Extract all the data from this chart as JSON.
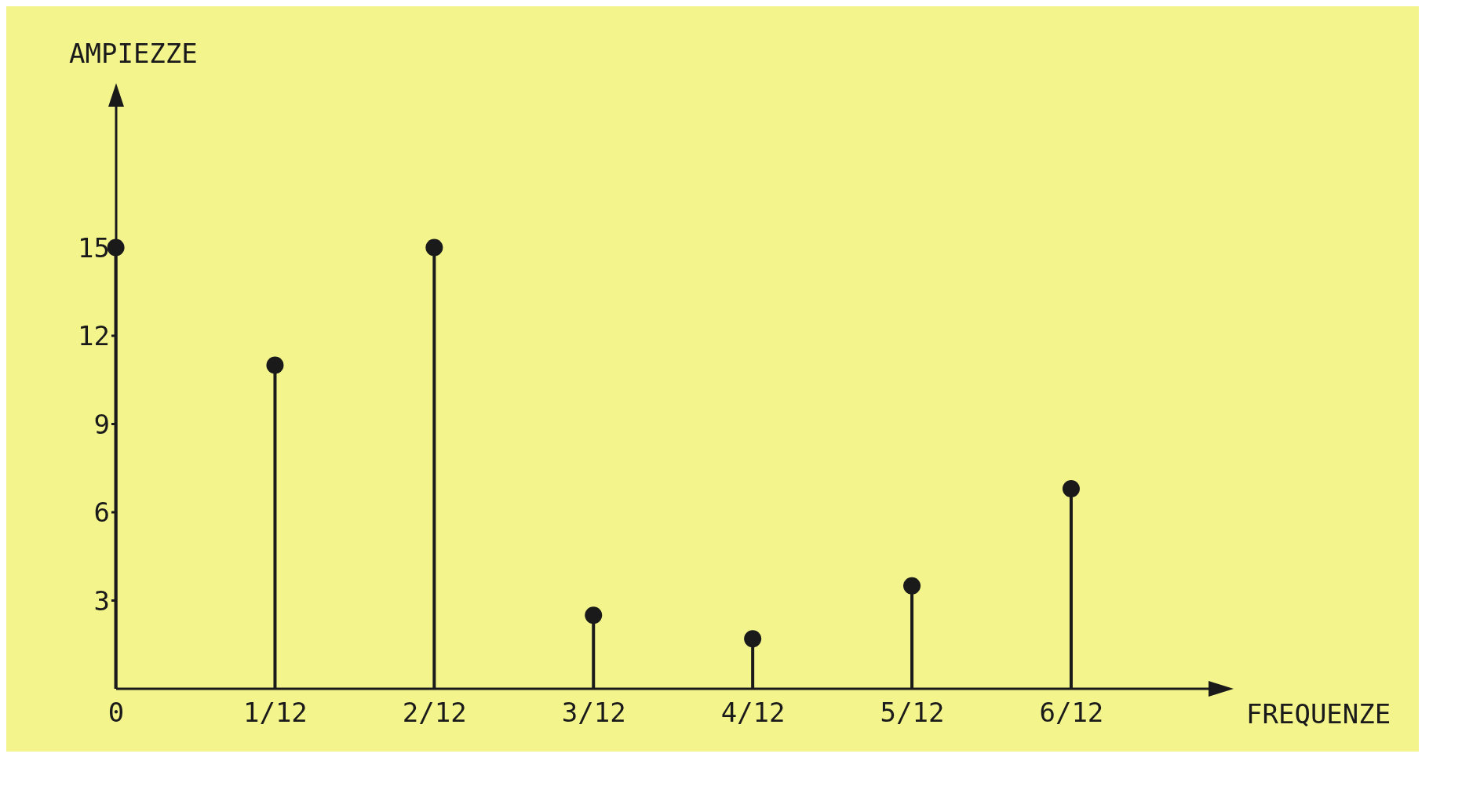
{
  "chart_data": {
    "type": "lollipop",
    "xlabel": "FREQUENZE",
    "ylabel": "AMPIEZZE",
    "categories": [
      "0",
      "1/12",
      "2/12",
      "3/12",
      "4/12",
      "5/12",
      "6/12"
    ],
    "values": [
      15,
      11,
      15,
      2.5,
      1.7,
      3.5,
      6.8
    ],
    "color": "#1a1a1a",
    "ylim": [
      0,
      20
    ],
    "yticks": [
      3,
      6,
      9,
      12,
      15
    ],
    "marker": "circle"
  }
}
